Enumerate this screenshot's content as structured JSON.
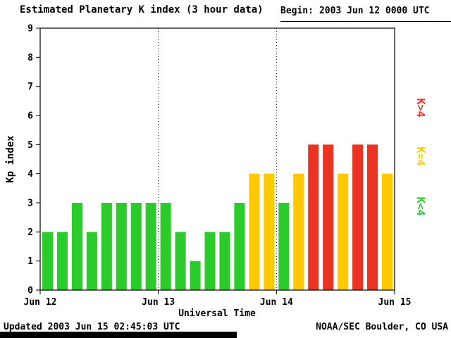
{
  "header": {
    "title": "Estimated Planetary K index (3 hour data)",
    "begin_label": "Begin:",
    "begin_value": "2003 Jun 12 0000 UTC"
  },
  "footer": {
    "updated": "Updated 2003 Jun 15 02:45:03 UTC",
    "attribution": "NOAA/SEC Boulder, CO USA"
  },
  "chart_data": {
    "type": "bar",
    "title": "Estimated Planetary K index (3 hour data)",
    "xlabel": "Universal Time",
    "ylabel": "Kp index",
    "ylim": [
      0,
      9
    ],
    "yticks": [
      0,
      1,
      2,
      3,
      4,
      5,
      6,
      7,
      8,
      9
    ],
    "x_day_labels": [
      "Jun 12",
      "Jun 13",
      "Jun 14",
      "Jun 15"
    ],
    "bars_per_day": 8,
    "interval_hours": 3,
    "values": [
      2,
      2,
      3,
      2,
      3,
      3,
      3,
      3,
      3,
      2,
      1,
      2,
      2,
      3,
      4,
      4,
      3,
      4,
      5,
      5,
      4,
      5,
      5,
      4
    ],
    "colors": {
      "low": "#2BCB2B",
      "mid": "#FFC800",
      "high": "#EB3223"
    },
    "color_rule": "green if Kp<4, yellow if Kp=4, red if Kp>4",
    "day_separator_style": "dotted",
    "grid": false,
    "legend_position": "right-rotated",
    "legend": [
      {
        "label": "K>4",
        "color": "#EB3223"
      },
      {
        "label": "K=4",
        "color": "#FFC800"
      },
      {
        "label": "K<4",
        "color": "#2BCB2B"
      }
    ]
  }
}
